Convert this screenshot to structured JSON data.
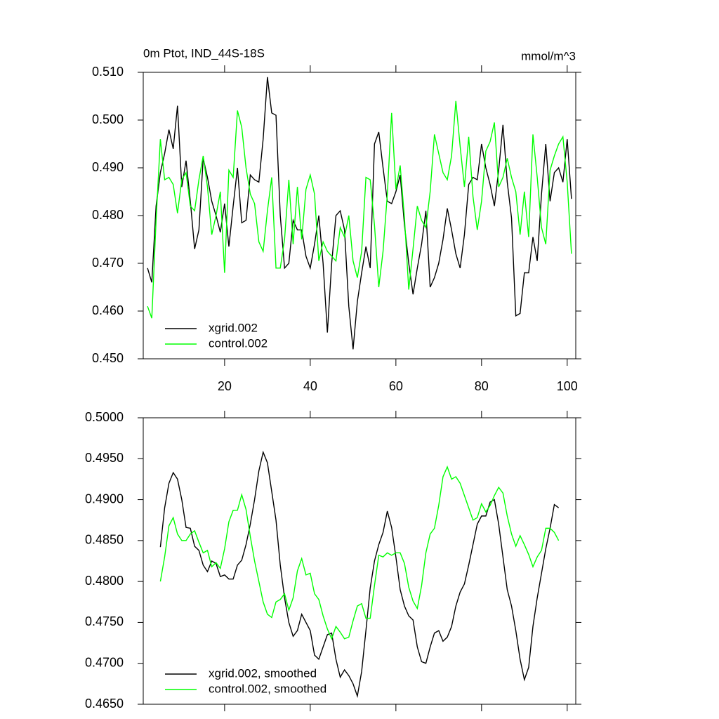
{
  "chart_data": [
    {
      "type": "line",
      "title": "0m Ptot, IND_44S-18S",
      "subtitle": "mmol/m^3",
      "xlim": [
        1,
        102
      ],
      "xticks": [
        20,
        40,
        60,
        80,
        100
      ],
      "ylim": [
        0.45,
        0.51
      ],
      "yticks": [
        {
          "value": 0.45,
          "label": "0.450"
        },
        {
          "value": 0.46,
          "label": "0.460"
        },
        {
          "value": 0.47,
          "label": "0.470"
        },
        {
          "value": 0.48,
          "label": "0.480"
        },
        {
          "value": 0.49,
          "label": "0.490"
        },
        {
          "value": 0.5,
          "label": "0.500"
        },
        {
          "value": 0.51,
          "label": "0.510"
        }
      ],
      "x": [
        2,
        3,
        4,
        5,
        6,
        7,
        8,
        9,
        10,
        11,
        12,
        13,
        14,
        15,
        16,
        17,
        18,
        19,
        20,
        21,
        22,
        23,
        24,
        25,
        26,
        27,
        28,
        29,
        30,
        31,
        32,
        33,
        34,
        35,
        36,
        37,
        38,
        39,
        40,
        41,
        42,
        43,
        44,
        45,
        46,
        47,
        48,
        49,
        50,
        51,
        52,
        53,
        54,
        55,
        56,
        57,
        58,
        59,
        60,
        61,
        62,
        63,
        64,
        65,
        66,
        67,
        68,
        69,
        70,
        71,
        72,
        73,
        74,
        75,
        76,
        77,
        78,
        79,
        80,
        81,
        82,
        83,
        84,
        85,
        86,
        87,
        88,
        89,
        90,
        91,
        92,
        93,
        94,
        95,
        96,
        97,
        98,
        99,
        100,
        101
      ],
      "series": [
        {
          "name": "xgrid.002",
          "color": "#000000",
          "values": [
            0.469,
            0.466,
            0.482,
            0.489,
            0.493,
            0.498,
            0.494,
            0.503,
            0.486,
            0.4915,
            0.483,
            0.473,
            0.477,
            0.492,
            0.488,
            0.483,
            0.48,
            0.4765,
            0.4825,
            0.4735,
            0.482,
            0.49,
            0.4785,
            0.479,
            0.4885,
            0.4875,
            0.487,
            0.496,
            0.509,
            0.5015,
            0.501,
            0.48,
            0.469,
            0.47,
            0.479,
            0.477,
            0.477,
            0.4715,
            0.469,
            0.474,
            0.48,
            0.47,
            0.4555,
            0.47,
            0.48,
            0.481,
            0.477,
            0.461,
            0.452,
            0.462,
            0.468,
            0.4735,
            0.469,
            0.495,
            0.4975,
            0.49,
            0.483,
            0.4825,
            0.485,
            0.4885,
            0.478,
            0.47,
            0.4635,
            0.469,
            0.474,
            0.481,
            0.465,
            0.467,
            0.47,
            0.475,
            0.4815,
            0.477,
            0.472,
            0.469,
            0.476,
            0.4865,
            0.488,
            0.4875,
            0.495,
            0.49,
            0.4865,
            0.482,
            0.4895,
            0.499,
            0.487,
            0.4795,
            0.459,
            0.4595,
            0.468,
            0.468,
            0.4755,
            0.4705,
            0.4845,
            0.495,
            0.483,
            0.489,
            0.49,
            0.487,
            0.496,
            0.4835
          ]
        },
        {
          "name": "control.002",
          "color": "#00ff00",
          "values": [
            0.461,
            0.4585,
            0.479,
            0.496,
            0.4875,
            0.488,
            0.4865,
            0.4805,
            0.4875,
            0.489,
            0.482,
            0.481,
            0.4875,
            0.4925,
            0.486,
            0.476,
            0.48,
            0.485,
            0.468,
            0.4895,
            0.488,
            0.502,
            0.4985,
            0.49,
            0.4845,
            0.4825,
            0.4745,
            0.4725,
            0.481,
            0.488,
            0.469,
            0.469,
            0.475,
            0.4875,
            0.474,
            0.486,
            0.475,
            0.4855,
            0.4885,
            0.4845,
            0.4705,
            0.4745,
            0.4725,
            0.4715,
            0.4705,
            0.4775,
            0.4755,
            0.48,
            0.4705,
            0.467,
            0.4725,
            0.488,
            0.4875,
            0.478,
            0.465,
            0.4725,
            0.4845,
            0.5015,
            0.4855,
            0.4905,
            0.4795,
            0.4645,
            0.473,
            0.482,
            0.479,
            0.4775,
            0.485,
            0.497,
            0.493,
            0.489,
            0.4875,
            0.4925,
            0.504,
            0.4945,
            0.486,
            0.4965,
            0.484,
            0.477,
            0.483,
            0.4935,
            0.4955,
            0.4995,
            0.486,
            0.488,
            0.492,
            0.488,
            0.485,
            0.476,
            0.485,
            0.4755,
            0.497,
            0.488,
            0.4775,
            0.474,
            0.4895,
            0.4925,
            0.495,
            0.4965,
            0.487,
            0.472
          ]
        }
      ]
    },
    {
      "type": "line",
      "xlim": [
        1,
        102
      ],
      "xticks": [
        20,
        40,
        60,
        80,
        100
      ],
      "ylim": [
        0.465,
        0.5
      ],
      "yticks": [
        {
          "value": 0.465,
          "label": "0.4650"
        },
        {
          "value": 0.47,
          "label": "0.4700"
        },
        {
          "value": 0.475,
          "label": "0.4750"
        },
        {
          "value": 0.48,
          "label": "0.4800"
        },
        {
          "value": 0.485,
          "label": "0.4850"
        },
        {
          "value": 0.49,
          "label": "0.4900"
        },
        {
          "value": 0.495,
          "label": "0.4950"
        },
        {
          "value": 0.5,
          "label": "0.5000"
        }
      ],
      "x": [
        5,
        6,
        7,
        8,
        9,
        10,
        11,
        12,
        13,
        14,
        15,
        16,
        17,
        18,
        19,
        20,
        21,
        22,
        23,
        24,
        25,
        26,
        27,
        28,
        29,
        30,
        31,
        32,
        33,
        34,
        35,
        36,
        37,
        38,
        39,
        40,
        41,
        42,
        43,
        44,
        45,
        46,
        47,
        48,
        49,
        50,
        51,
        52,
        53,
        54,
        55,
        56,
        57,
        58,
        59,
        60,
        61,
        62,
        63,
        64,
        65,
        66,
        67,
        68,
        69,
        70,
        71,
        72,
        73,
        74,
        75,
        76,
        77,
        78,
        79,
        80,
        81,
        82,
        83,
        84,
        85,
        86,
        87,
        88,
        89,
        90,
        91,
        92,
        93,
        94,
        95,
        96,
        97,
        98
      ],
      "series": [
        {
          "name": "xgrid.002, smoothed",
          "color": "#000000",
          "values": [
            0.4842,
            0.489,
            0.492,
            0.4933,
            0.4925,
            0.49,
            0.4866,
            0.4865,
            0.4843,
            0.4838,
            0.482,
            0.4812,
            0.4825,
            0.4822,
            0.4806,
            0.4808,
            0.4803,
            0.4803,
            0.482,
            0.4826,
            0.4845,
            0.487,
            0.49,
            0.4935,
            0.4958,
            0.4945,
            0.491,
            0.4875,
            0.482,
            0.478,
            0.475,
            0.4733,
            0.474,
            0.476,
            0.475,
            0.474,
            0.471,
            0.4705,
            0.472,
            0.4735,
            0.4737,
            0.4705,
            0.4683,
            0.4692,
            0.4685,
            0.4675,
            0.466,
            0.469,
            0.474,
            0.4792,
            0.4825,
            0.4845,
            0.486,
            0.4886,
            0.4866,
            0.483,
            0.479,
            0.477,
            0.4758,
            0.4753,
            0.472,
            0.4702,
            0.47,
            0.472,
            0.4737,
            0.474,
            0.4727,
            0.4732,
            0.4745,
            0.477,
            0.4787,
            0.4797,
            0.482,
            0.4845,
            0.487,
            0.488,
            0.488,
            0.4897,
            0.49,
            0.487,
            0.483,
            0.479,
            0.477,
            0.474,
            0.4705,
            0.468,
            0.4695,
            0.4745,
            0.478,
            0.481,
            0.484,
            0.4865,
            0.4894,
            0.489
          ]
        },
        {
          "name": "control.002, smoothed",
          "color": "#00ff00",
          "values": [
            0.48,
            0.483,
            0.4868,
            0.4878,
            0.4858,
            0.485,
            0.485,
            0.4858,
            0.4862,
            0.4848,
            0.4835,
            0.4838,
            0.4818,
            0.4823,
            0.4816,
            0.484,
            0.4873,
            0.4887,
            0.4887,
            0.4906,
            0.4888,
            0.4855,
            0.4825,
            0.48,
            0.4775,
            0.476,
            0.4756,
            0.4775,
            0.4778,
            0.4785,
            0.4765,
            0.478,
            0.4813,
            0.4828,
            0.4808,
            0.481,
            0.4785,
            0.4778,
            0.4758,
            0.4742,
            0.473,
            0.4745,
            0.4738,
            0.473,
            0.4732,
            0.4752,
            0.477,
            0.4773,
            0.4755,
            0.4755,
            0.4795,
            0.4832,
            0.483,
            0.4835,
            0.4832,
            0.4835,
            0.4835,
            0.4822,
            0.4793,
            0.4776,
            0.4767,
            0.4795,
            0.4835,
            0.4858,
            0.4865,
            0.4893,
            0.4928,
            0.494,
            0.4925,
            0.4928,
            0.492,
            0.4905,
            0.489,
            0.4875,
            0.4878,
            0.4895,
            0.4885,
            0.4893,
            0.4905,
            0.4915,
            0.4908,
            0.488,
            0.4858,
            0.4843,
            0.4856,
            0.4845,
            0.4833,
            0.4818,
            0.483,
            0.4838,
            0.4865,
            0.4865,
            0.486,
            0.485
          ]
        }
      ]
    }
  ]
}
